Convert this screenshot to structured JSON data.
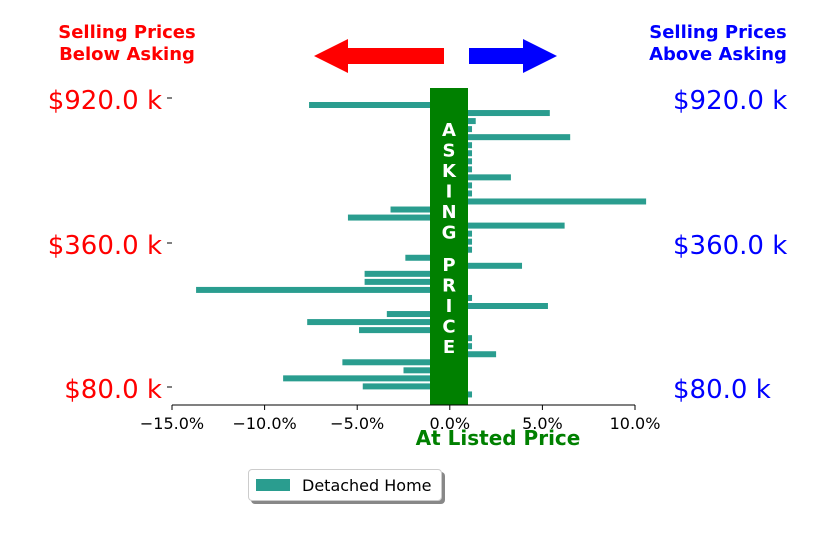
{
  "header": {
    "left_title": [
      "Selling Prices",
      "Below Asking"
    ],
    "right_title": [
      "Selling Prices",
      "Above Asking"
    ],
    "left_color": "#ff0000",
    "right_color": "#0000ff"
  },
  "band": {
    "color": "#008000",
    "text": "ASKING PRICE"
  },
  "legend": {
    "label": "Detached Home",
    "color": "#2a9d8f"
  },
  "chart_data": {
    "type": "bar",
    "orientation": "horizontal",
    "title": "",
    "xlabel": "At Listed Price",
    "ylabel": "",
    "xlim": [
      -15.0,
      10.0
    ],
    "xticks": [
      -15.0,
      -10.0,
      -5.0,
      0.0,
      5.0,
      10.0
    ],
    "xtick_labels": [
      "−15.0%",
      "−10.0%",
      "−5.0%",
      "0.0%",
      "5.0%",
      "10.0%"
    ],
    "ytick_labels_left": [
      "$920.0 k",
      "$360.0 k",
      "$80.0 k"
    ],
    "ytick_labels_right": [
      "$920.0 k",
      "$360.0 k",
      "$80.0 k"
    ],
    "series": [
      {
        "name": "Detached Home",
        "color": "#2a9d8f",
        "values": [
          -7.6,
          5.4,
          1.4,
          1.2,
          6.5,
          1.2,
          1.2,
          1.2,
          1.2,
          3.3,
          1.2,
          1.2,
          10.6,
          -3.2,
          -5.5,
          6.2,
          1.2,
          1.2,
          1.2,
          -2.4,
          3.9,
          -4.6,
          -4.6,
          -13.7,
          1.2,
          5.3,
          -3.4,
          -7.7,
          -4.9,
          1.2,
          1.2,
          2.5,
          -5.8,
          -2.5,
          -9.0,
          -4.7,
          1.2
        ]
      }
    ]
  }
}
